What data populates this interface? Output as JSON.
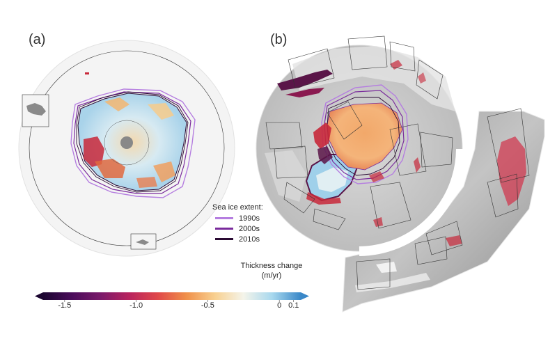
{
  "panels": {
    "a": {
      "label": "(a)"
    },
    "b": {
      "label": "(b)"
    }
  },
  "legend": {
    "title": "Sea ice extent:",
    "items": [
      {
        "label": "1990s",
        "color": "#b57ee0"
      },
      {
        "label": "2000s",
        "color": "#7a2b9c"
      },
      {
        "label": "2010s",
        "color": "#2a0a33"
      }
    ]
  },
  "colorbar": {
    "title_line1": "Thickness change",
    "title_line2": "(m/yr)",
    "ticks": [
      {
        "value": -1.5,
        "label": "-1.5"
      },
      {
        "value": -1.0,
        "label": "-1.0"
      },
      {
        "value": -0.5,
        "label": "-0.5"
      },
      {
        "value": 0,
        "label": "0"
      },
      {
        "value": 0.1,
        "label": "0.1"
      }
    ],
    "range": [
      -1.65,
      0.15
    ],
    "colors": [
      "#1b0530",
      "#4a0c5a",
      "#7a1a6a",
      "#b8235e",
      "#e0484a",
      "#f0904a",
      "#f8d090",
      "#f4f4ea",
      "#a8d8ee",
      "#3a88c8"
    ]
  },
  "colors": {
    "globe_fill": "#f2f2f2",
    "land_gray": "#c8c8c8",
    "ice_orange": "#f4a462",
    "ice_blue": "#bfe0ef",
    "loss_red": "#c8283a",
    "loss_purple": "#5a1548"
  }
}
